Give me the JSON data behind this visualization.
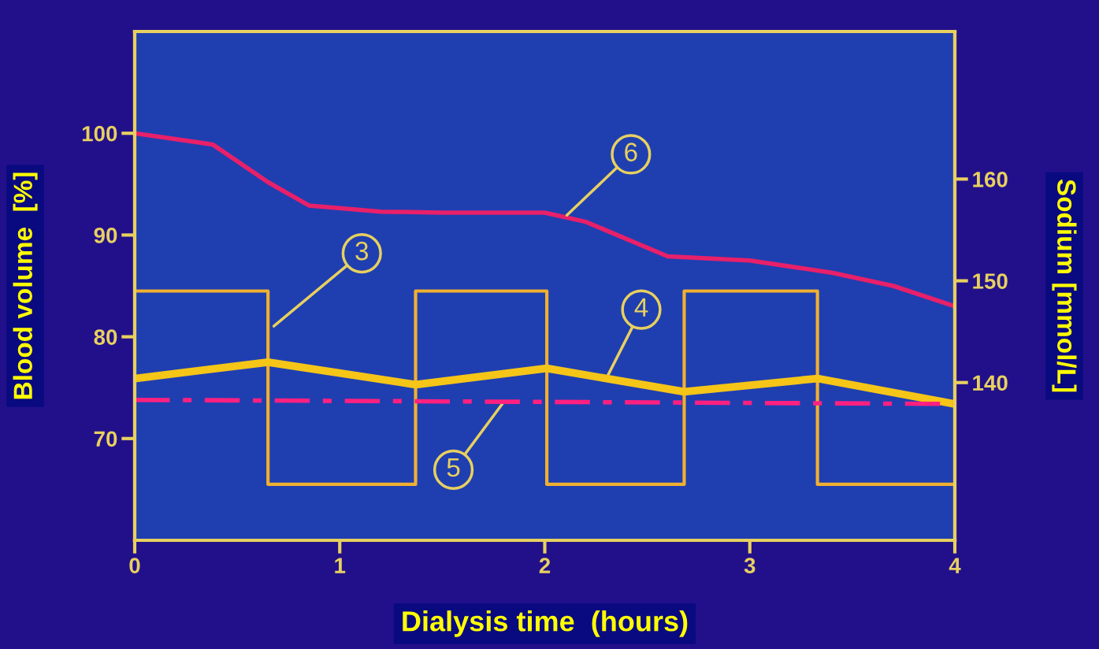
{
  "chart_data": {
    "type": "line",
    "xlabel": "Dialysis time  (hours)",
    "ylabel": "Blood volume  [%]",
    "y2label": "Sodium [mmol/L]",
    "xlim": [
      0,
      4
    ],
    "xticks": [
      0,
      1,
      2,
      3,
      4
    ],
    "ylim": [
      60,
      110
    ],
    "yticks": [
      70,
      80,
      90,
      100
    ],
    "y2lim": [
      124.5,
      174.5
    ],
    "y2ticks": [
      140,
      150,
      160
    ],
    "grid": false,
    "legend": false,
    "marker": "none",
    "series": [
      {
        "type": "step",
        "axis": "y2",
        "color": "#f0b030",
        "x": [
          0,
          0.65,
          1.37,
          2.01,
          2.68,
          3.33,
          4
        ],
        "values": [
          149,
          130,
          149,
          130,
          149,
          130,
          130
        ]
      },
      {
        "axis": "y2",
        "color": "#f5c518",
        "x": [
          0,
          0.65,
          1.37,
          2.01,
          2.68,
          3.33,
          4
        ],
        "values": [
          140.4,
          142,
          139.8,
          141.4,
          139.1,
          140.4,
          137.9
        ]
      },
      {
        "axis": "y2",
        "color": "#ff2080",
        "line_style": "dashed",
        "x": [
          0,
          4
        ],
        "values": [
          138.3,
          137.9
        ]
      },
      {
        "axis": "y",
        "color": "#e8206a",
        "x": [
          0,
          0.38,
          0.65,
          0.85,
          1.2,
          1.5,
          2.0,
          2.2,
          2.6,
          3.0,
          3.4,
          3.7,
          4
        ],
        "values": [
          100,
          98.9,
          95.2,
          92.9,
          92.3,
          92.2,
          92.2,
          91.3,
          87.9,
          87.5,
          86.3,
          85,
          83
        ]
      }
    ],
    "annotations": [
      {
        "text": "3",
        "x": 0.67,
        "y": 80.9
      },
      {
        "text": "4",
        "x": 2.3,
        "y": 75.9
      },
      {
        "text": "5",
        "x": 1.8,
        "y": 73.6
      },
      {
        "text": "6",
        "x": 2.1,
        "y": 91.8
      }
    ]
  }
}
